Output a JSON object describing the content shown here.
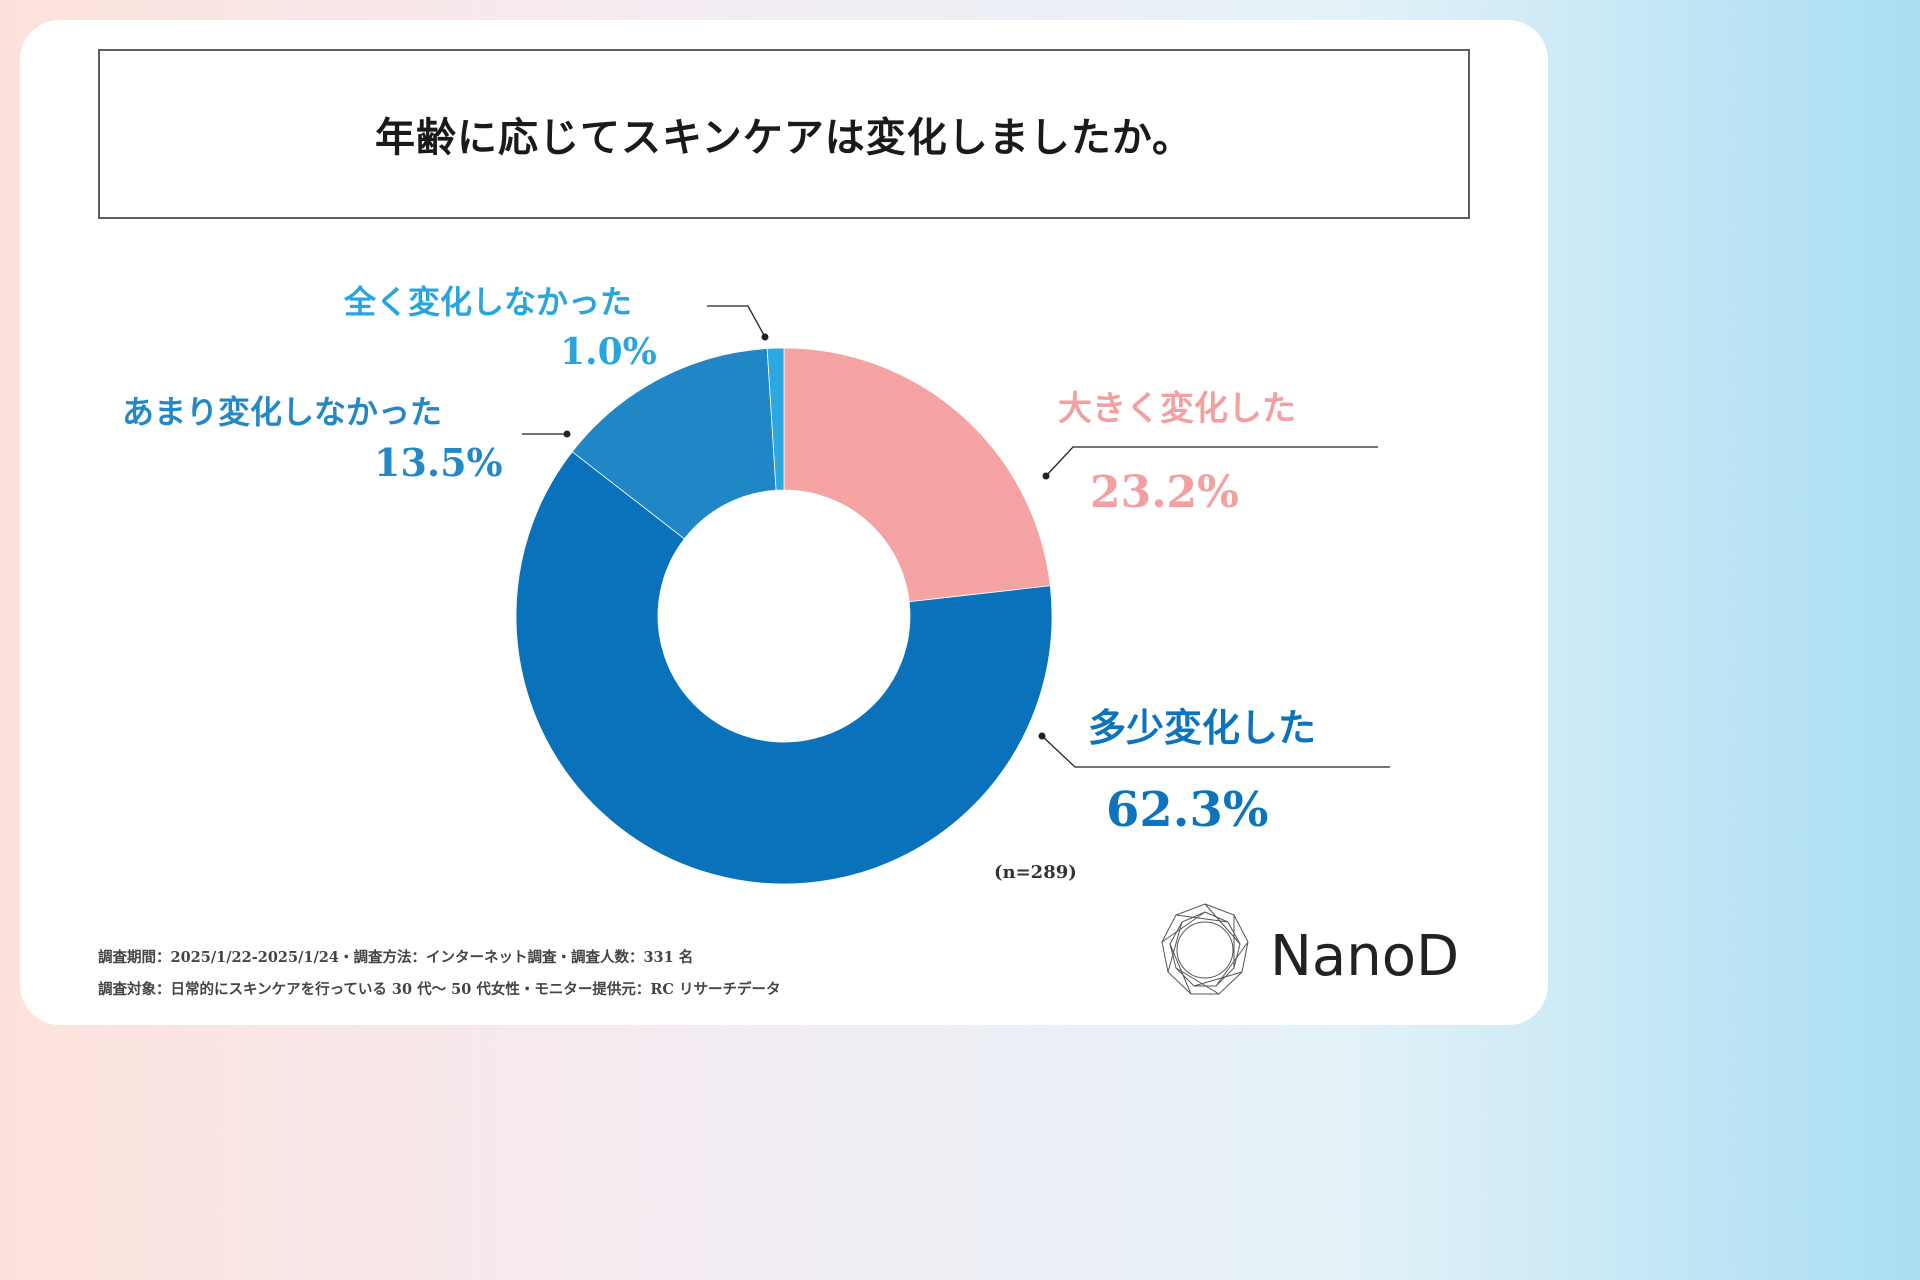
{
  "title": "年齢に応じてスキンケアは変化しましたか。",
  "sample_note": "(n=289)",
  "colors": {
    "big_change": "#f5a2a2",
    "some_change": "#0a71bb",
    "little_change": "#2086c6",
    "no_change": "#2ba8df",
    "label_big": "#f2a0a0",
    "label_some": "#0d73bc",
    "label_little": "#2588c6",
    "label_none": "#29a5dd"
  },
  "chart_data": {
    "type": "pie",
    "subtype": "donut",
    "title": "年齢に応じてスキンケアは変化しましたか。",
    "n": 289,
    "slices": [
      {
        "label": "大きく変化した",
        "value": 23.2,
        "display": "23.2%"
      },
      {
        "label": "多少変化した",
        "value": 62.3,
        "display": "62.3%"
      },
      {
        "label": "あまり変化しなかった",
        "value": 13.5,
        "display": "13.5%"
      },
      {
        "label": "全く変化しなかった",
        "value": 1.0,
        "display": "1.0%"
      }
    ]
  },
  "footnotes": {
    "line1": "調査期間：2025/1/22-2025/1/24・調査方法：インターネット調査・調査人数：331 名",
    "line2": "調査対象：日常的にスキンケアを行っている 30 代〜 50 代女性・モニター提供元：RC リサーチデータ"
  },
  "brand": {
    "name": "NanoD",
    "logo_icon": "diamond-ring-logo-icon"
  }
}
